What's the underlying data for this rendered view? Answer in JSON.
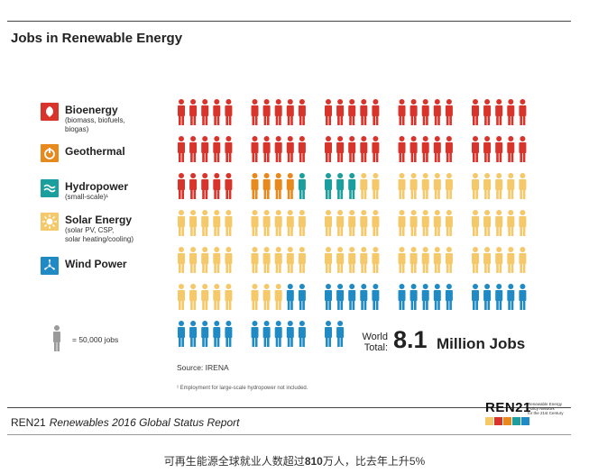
{
  "title": "Jobs in Renewable Energy",
  "legend": [
    {
      "name": "Bioenergy",
      "sub": [
        "(biomass, biofuels,",
        "biogas)"
      ],
      "color": "#d9342b",
      "icon": "leaf-icon"
    },
    {
      "name": "Geothermal",
      "sub": [],
      "color": "#e8891e",
      "icon": "power-icon"
    },
    {
      "name": "Hydropower",
      "sub": [
        "(small-scale)¹"
      ],
      "color": "#1a9e9e",
      "icon": "wave-icon"
    },
    {
      "name": "Solar Energy",
      "sub": [
        "(solar PV, CSP,",
        "solar heating/cooling)"
      ],
      "color": "#f5c86a",
      "icon": "sun-icon"
    },
    {
      "name": "Wind Power",
      "sub": [],
      "color": "#1f8ac4",
      "icon": "turbine-icon"
    }
  ],
  "unit_label": "= 50,000 jobs",
  "chart_data": {
    "type": "pictogram",
    "title": "Jobs in Renewable Energy",
    "unit": "50,000 jobs per figure",
    "series": [
      {
        "name": "Bioenergy",
        "figures": 55,
        "color": "#d9342b"
      },
      {
        "name": "Geothermal",
        "figures": 4,
        "color": "#e8891e"
      },
      {
        "name": "Hydropower",
        "figures": 4,
        "color": "#1a9e9e"
      },
      {
        "name": "Solar Energy",
        "figures": 70,
        "color": "#f5c86a"
      },
      {
        "name": "Wind Power",
        "figures": 29,
        "color": "#1f8ac4"
      }
    ],
    "total_figures": 162
  },
  "total": {
    "prefix": [
      "World",
      "Total:"
    ],
    "value": "8.1",
    "unit": "Million Jobs"
  },
  "source": "Source: IRENA",
  "footnote": "¹ Employment for large-scale hydropower not included.",
  "report": {
    "brand": "REN21",
    "title": "Renewables 2016 Global Status Report"
  },
  "logo": {
    "word": "REN21",
    "tagline": [
      "Renewable Energy",
      "Policy Network",
      "for the 21st Century"
    ]
  },
  "caption_parts": [
    "可再生能源全球就业人数超过",
    "810",
    "万人，比去年上升5%"
  ],
  "colors": {
    "grey": "#9a9a9a"
  }
}
